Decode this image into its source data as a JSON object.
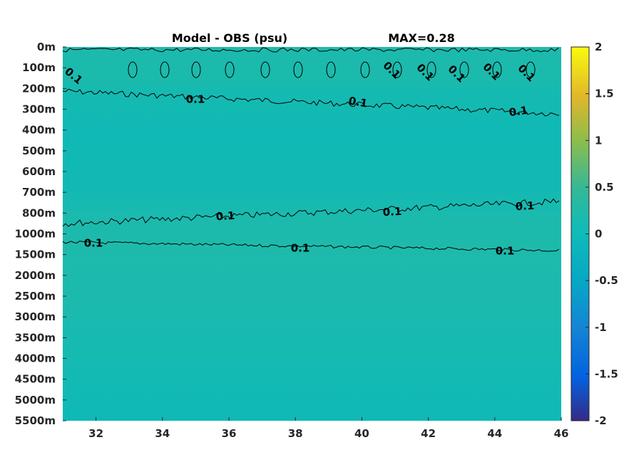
{
  "chart_data": {
    "type": "heatmap",
    "title": "Model - OBS (psu)",
    "annotation": "MAX=0.28",
    "xlabel": "",
    "ylabel": "",
    "xlim": [
      31,
      46
    ],
    "x_ticks": [
      "32",
      "34",
      "36",
      "38",
      "40",
      "42",
      "44",
      "46"
    ],
    "x_tick_values": [
      32,
      34,
      36,
      38,
      40,
      42,
      44,
      46
    ],
    "y_ticks": [
      "0m",
      "100m",
      "200m",
      "300m",
      "400m",
      "500m",
      "600m",
      "700m",
      "800m",
      "1000m",
      "1500m",
      "2000m",
      "2500m",
      "3000m",
      "3500m",
      "4000m",
      "4500m",
      "5000m",
      "5500m"
    ],
    "y_axis_reversed": true,
    "colorbar": {
      "range": [
        -2,
        2
      ],
      "ticks": [
        "2",
        "1.5",
        "1",
        "0.5",
        "0",
        "-0.5",
        "-1",
        "-1.5",
        "-2"
      ],
      "tick_values": [
        2,
        1.5,
        1,
        0.5,
        0,
        -0.5,
        -1,
        -1.5,
        -2
      ],
      "colormap": "parula"
    },
    "contour_level": 0.1,
    "contour_labels": [
      "0.1",
      "0.1",
      "0.1",
      "0.1",
      "0.1",
      "0.1",
      "0.1",
      "0.1",
      "0.1",
      "0.1",
      "0.1",
      "0.1",
      "0.1",
      "0.1",
      "0.1",
      "0.1",
      "0.1"
    ],
    "depth_band_values": [
      {
        "depth": "0m-100m",
        "value": 0.12
      },
      {
        "depth": "100m-200m",
        "value": 0.14
      },
      {
        "depth": "200m-300m",
        "value": 0.06
      },
      {
        "depth": "300m-700m",
        "value": 0.03
      },
      {
        "depth": "700m-800m",
        "value": 0.07
      },
      {
        "depth": "800m-1500m",
        "value": 0.12
      },
      {
        "depth": "1500m-3000m",
        "value": 0.11
      },
      {
        "depth": "3000m-4000m",
        "value": 0.06
      },
      {
        "depth": "4000m-5500m",
        "value": 0.02
      }
    ],
    "grid": false
  }
}
